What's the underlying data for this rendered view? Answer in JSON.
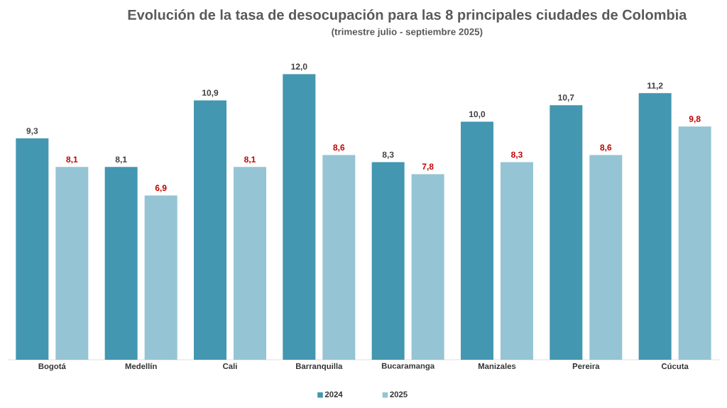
{
  "chart_data": {
    "type": "bar",
    "title": "Evolución de la tasa de desocupación para las 8 principales ciudades de Colombia",
    "subtitle": "(trimestre julio - septiembre 2025)",
    "categories": [
      "Bogotá",
      "Medellín",
      "Cali",
      "Barranquilla",
      "Bucaramanga",
      "Manizales",
      "Pereira",
      "Cúcuta"
    ],
    "series": [
      {
        "name": "2024",
        "color": "#4397b0",
        "values": [
          9.3,
          8.1,
          10.9,
          12.0,
          8.3,
          10.0,
          10.7,
          11.2
        ],
        "value_labels": [
          "9,3",
          "8,1",
          "10,9",
          "12,0",
          "8,3",
          "10,0",
          "10,7",
          "11,2"
        ]
      },
      {
        "name": "2025",
        "color": "#95c4d4",
        "values": [
          8.1,
          6.9,
          8.1,
          8.6,
          7.8,
          8.3,
          8.6,
          9.8
        ],
        "value_labels": [
          "8,1",
          "6,9",
          "8,1",
          "8,6",
          "7,8",
          "8,3",
          "8,6",
          "9,8"
        ]
      }
    ],
    "tick_labels": "x",
    "legend": "bottom"
  }
}
